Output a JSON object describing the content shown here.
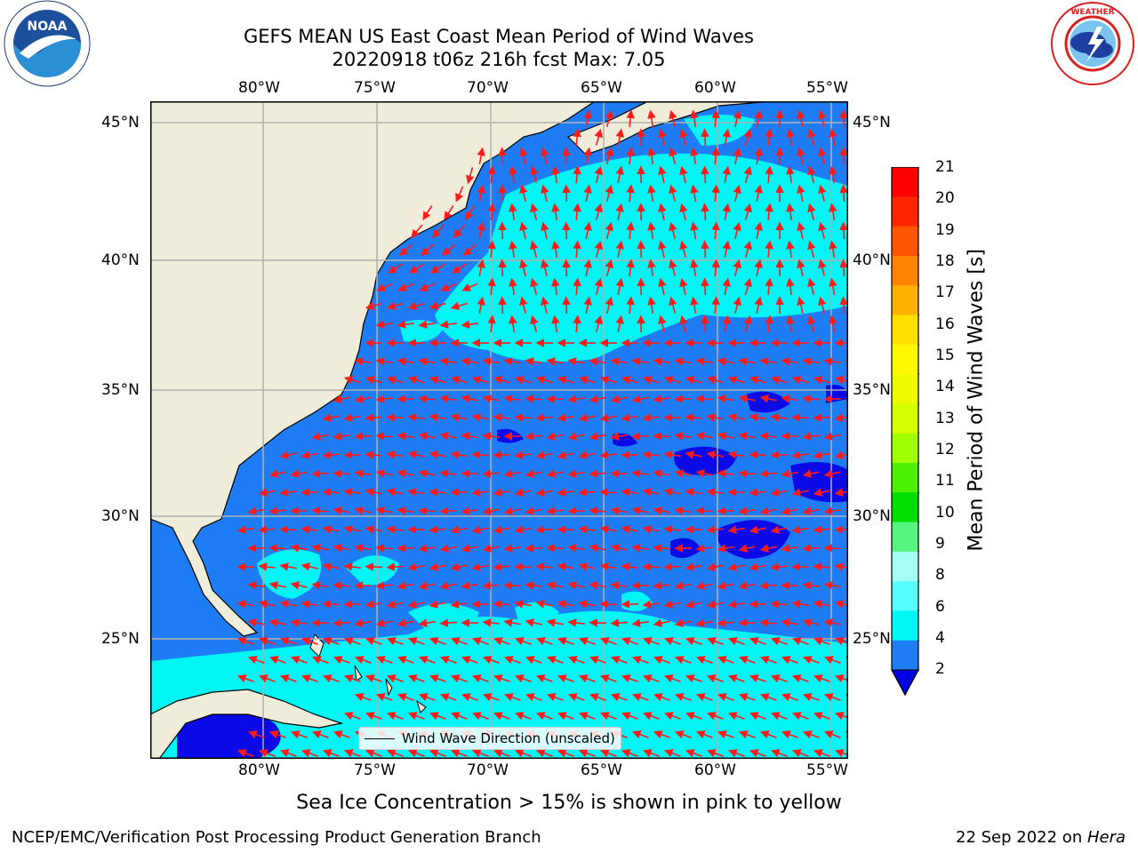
{
  "header": {
    "title_line1": "GEFS MEAN US East Coast Mean Period of Wind Waves",
    "title_line2": "20220918 t06z 216h fcst   Max: 7.05"
  },
  "logos": {
    "left_text": "NOAA",
    "left_ring": "NATIONAL OCEANIC AND ATMOSPHERIC ADMINISTRATION · U.S. DEPARTMENT OF COMMERCE",
    "right_ring": "NATIONAL WEATHER SERVICE"
  },
  "map": {
    "lon_labels": [
      "80°W",
      "75°W",
      "70°W",
      "65°W",
      "60°W",
      "55°W"
    ],
    "lat_labels": [
      "45°N",
      "40°N",
      "35°N",
      "30°N",
      "25°N"
    ],
    "legend_label": "Wind Wave Direction (unscaled)",
    "colors": {
      "land": "#efedda",
      "ocean_2_4": "#1e7df5",
      "ocean_4_6": "#00f5f5",
      "ocean_0_2": "#0a0ae6",
      "arrow": "#ff1a1a",
      "grid": "#b0b0b0"
    }
  },
  "colorbar": {
    "label": "Mean Period of Wind Waves [s]",
    "ticks": [
      "21",
      "20",
      "19",
      "18",
      "17",
      "16",
      "15",
      "14",
      "13",
      "12",
      "11",
      "10",
      "9",
      "8",
      "6",
      "4",
      "2"
    ],
    "colors": [
      "#ff0000",
      "#ff2600",
      "#ff5400",
      "#ff8200",
      "#ffb000",
      "#ffde00",
      "#fff700",
      "#eefb00",
      "#d6ff00",
      "#a0ff00",
      "#4cf000",
      "#00e000",
      "#55f57f",
      "#a6fff4",
      "#55fffd",
      "#00f5f5",
      "#1e7df5"
    ],
    "extend_color": "#0000e0"
  },
  "notes": {
    "sea_ice": "Sea Ice Concentration > 15% is shown in pink to yellow"
  },
  "footer": {
    "left": "NCEP/EMC/Verification Post Processing Product Generation Branch",
    "date": "22 Sep 2022 on ",
    "host": "Hera"
  }
}
